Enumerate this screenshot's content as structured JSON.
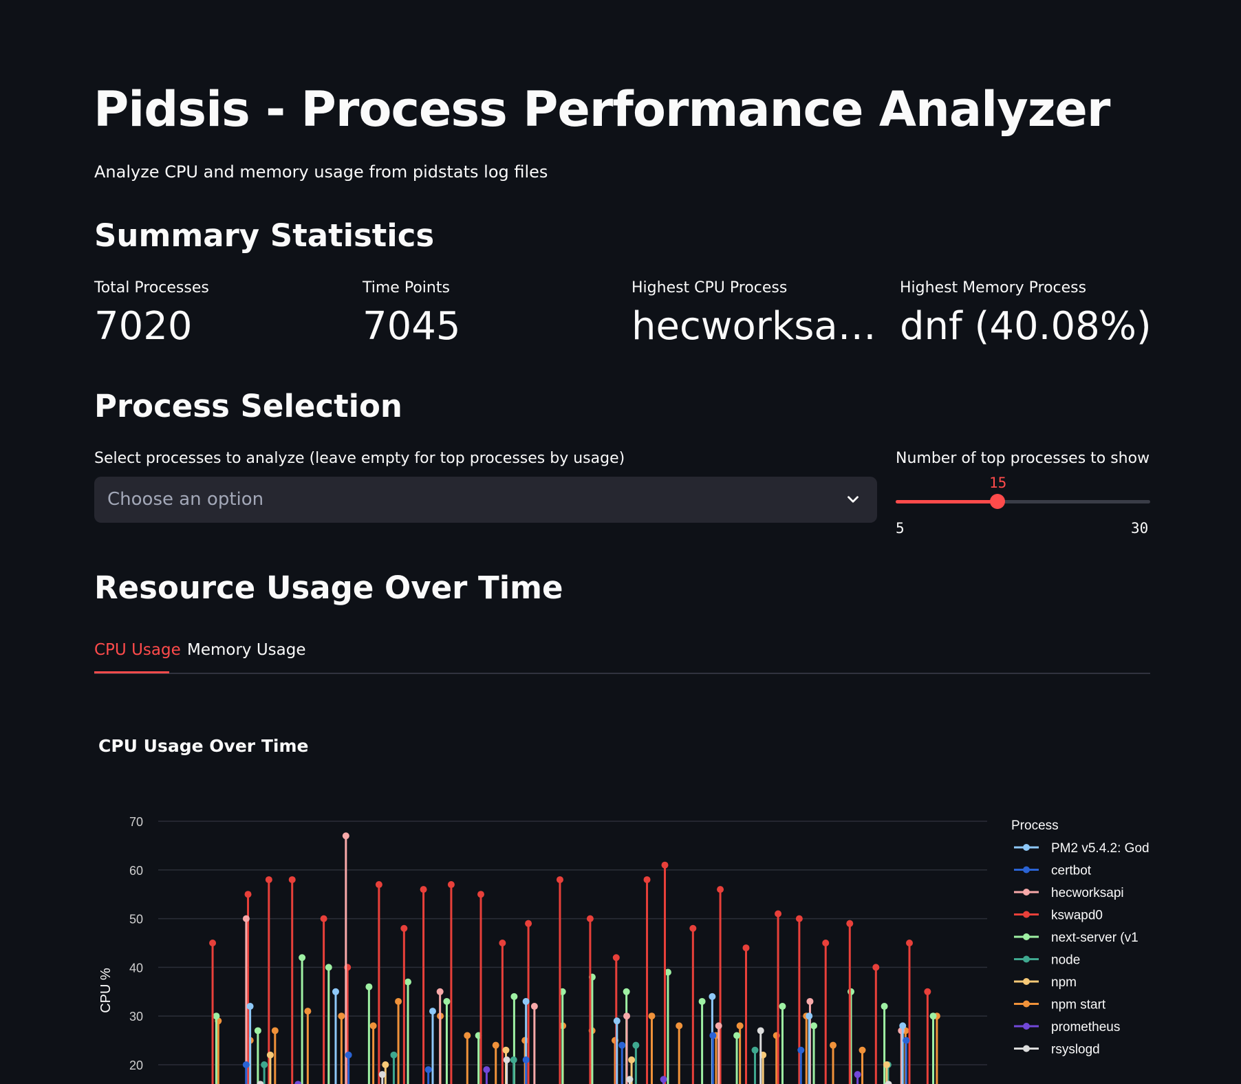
{
  "header": {
    "title": "Pidsis - Process Performance Analyzer",
    "subtitle": "Analyze CPU and memory usage from pidstats log files"
  },
  "summary": {
    "heading": "Summary Statistics",
    "metrics": [
      {
        "label": "Total Processes",
        "value": "7020"
      },
      {
        "label": "Time Points",
        "value": "7045"
      },
      {
        "label": "Highest CPU Process",
        "value": "hecworksa…"
      },
      {
        "label": "Highest Memory Process",
        "value": "dnf (40.08%)"
      }
    ]
  },
  "selection": {
    "heading": "Process Selection",
    "multiselect_label": "Select processes to analyze (leave empty for top processes by usage)",
    "multiselect_placeholder": "Choose an option",
    "slider_label": "Number of top processes to show",
    "slider_value": 15,
    "slider_min": 5,
    "slider_max": 30,
    "slider_value_text": "15",
    "slider_min_text": "5",
    "slider_max_text": "30"
  },
  "resource": {
    "heading": "Resource Usage Over Time",
    "tabs": [
      {
        "label": "CPU Usage",
        "active": true
      },
      {
        "label": "Memory Usage",
        "active": false
      }
    ]
  },
  "colors": {
    "accent": "#ff4b4b",
    "background": "#0e1117",
    "input_bg": "#262730"
  },
  "chart_data": {
    "type": "scatter",
    "title": "CPU Usage Over Time",
    "xlabel": "",
    "ylabel": "CPU %",
    "yticks": [
      20,
      30,
      40,
      50,
      60,
      70
    ],
    "ytick_labels": [
      "20",
      "30",
      "40",
      "50",
      "60",
      "70"
    ],
    "ylim": [
      15,
      73
    ],
    "grid": true,
    "legend_title": "Process",
    "legend_position": "right",
    "series": [
      {
        "name": "PM2 v5.4.2: God",
        "color": "#8ec8f8",
        "values": [
          32,
          35,
          31,
          33,
          29,
          34,
          30,
          28
        ]
      },
      {
        "name": "certbot",
        "color": "#2a63d4",
        "values": [
          20,
          22,
          19,
          21,
          24,
          26,
          23,
          25
        ]
      },
      {
        "name": "hecworksapi",
        "color": "#f8a9a9",
        "values": [
          50,
          67,
          35,
          32,
          30,
          28,
          33,
          27
        ]
      },
      {
        "name": "kswapd0",
        "color": "#e8403a",
        "values": [
          45,
          55,
          58,
          58,
          50,
          40,
          57,
          48,
          56,
          57,
          55,
          45,
          49,
          58,
          50,
          42,
          58,
          61,
          48,
          56,
          44,
          51,
          50,
          45,
          49,
          40,
          45,
          35
        ]
      },
      {
        "name": "next-server (v1",
        "color": "#9ef0a3",
        "values": [
          30,
          27,
          42,
          40,
          36,
          37,
          33,
          26,
          34,
          35,
          38,
          35,
          39,
          33,
          26,
          32,
          28,
          35,
          32,
          30
        ]
      },
      {
        "name": "node",
        "color": "#3fa88f",
        "values": [
          20,
          22,
          21,
          24,
          23,
          20
        ]
      },
      {
        "name": "npm",
        "color": "#f7c977",
        "values": [
          22,
          20,
          23,
          21,
          22,
          20
        ]
      },
      {
        "name": "npm start",
        "color": "#f0923a",
        "values": [
          29,
          25,
          27,
          31,
          30,
          28,
          33,
          30,
          26,
          24,
          25,
          28,
          27,
          25,
          30,
          28,
          26,
          28,
          26,
          30,
          24,
          23,
          27,
          30
        ]
      },
      {
        "name": "prometheus",
        "color": "#7148d8",
        "values": [
          16,
          19,
          17,
          18
        ]
      },
      {
        "name": "rsyslogd",
        "color": "#dcdcdc",
        "values": [
          16,
          18,
          21,
          17,
          27,
          16
        ]
      }
    ]
  }
}
